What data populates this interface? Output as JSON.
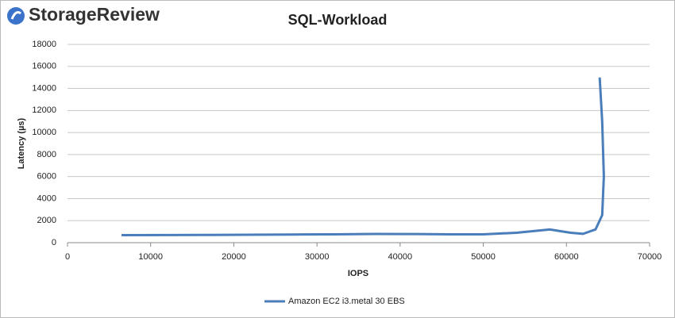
{
  "chart_data": {
    "type": "line",
    "brand": "StorageReview",
    "title": "SQL-Workload",
    "xlabel": "IOPS",
    "ylabel": "Latency (µs)",
    "x": [
      6500,
      12000,
      17000,
      22000,
      27000,
      32000,
      37000,
      42000,
      46000,
      50000,
      54000,
      58000,
      60500,
      62000,
      63500,
      64300,
      64500,
      64300,
      64000
    ],
    "series": [
      {
        "name": "Amazon EC2 i3.metal 30 EBS",
        "color": "#4a7ebb",
        "values": [
          680,
          690,
          700,
          720,
          740,
          760,
          790,
          780,
          760,
          760,
          900,
          1200,
          900,
          800,
          1200,
          2500,
          6000,
          11000,
          15000
        ]
      }
    ],
    "xlim": [
      0,
      70000
    ],
    "xticks": [
      0,
      10000,
      20000,
      30000,
      40000,
      50000,
      60000,
      70000
    ],
    "ylim": [
      0,
      18000
    ],
    "yticks": [
      0,
      2000,
      4000,
      6000,
      8000,
      10000,
      12000,
      14000,
      16000,
      18000
    ],
    "grid": true,
    "legend": "bottom"
  }
}
